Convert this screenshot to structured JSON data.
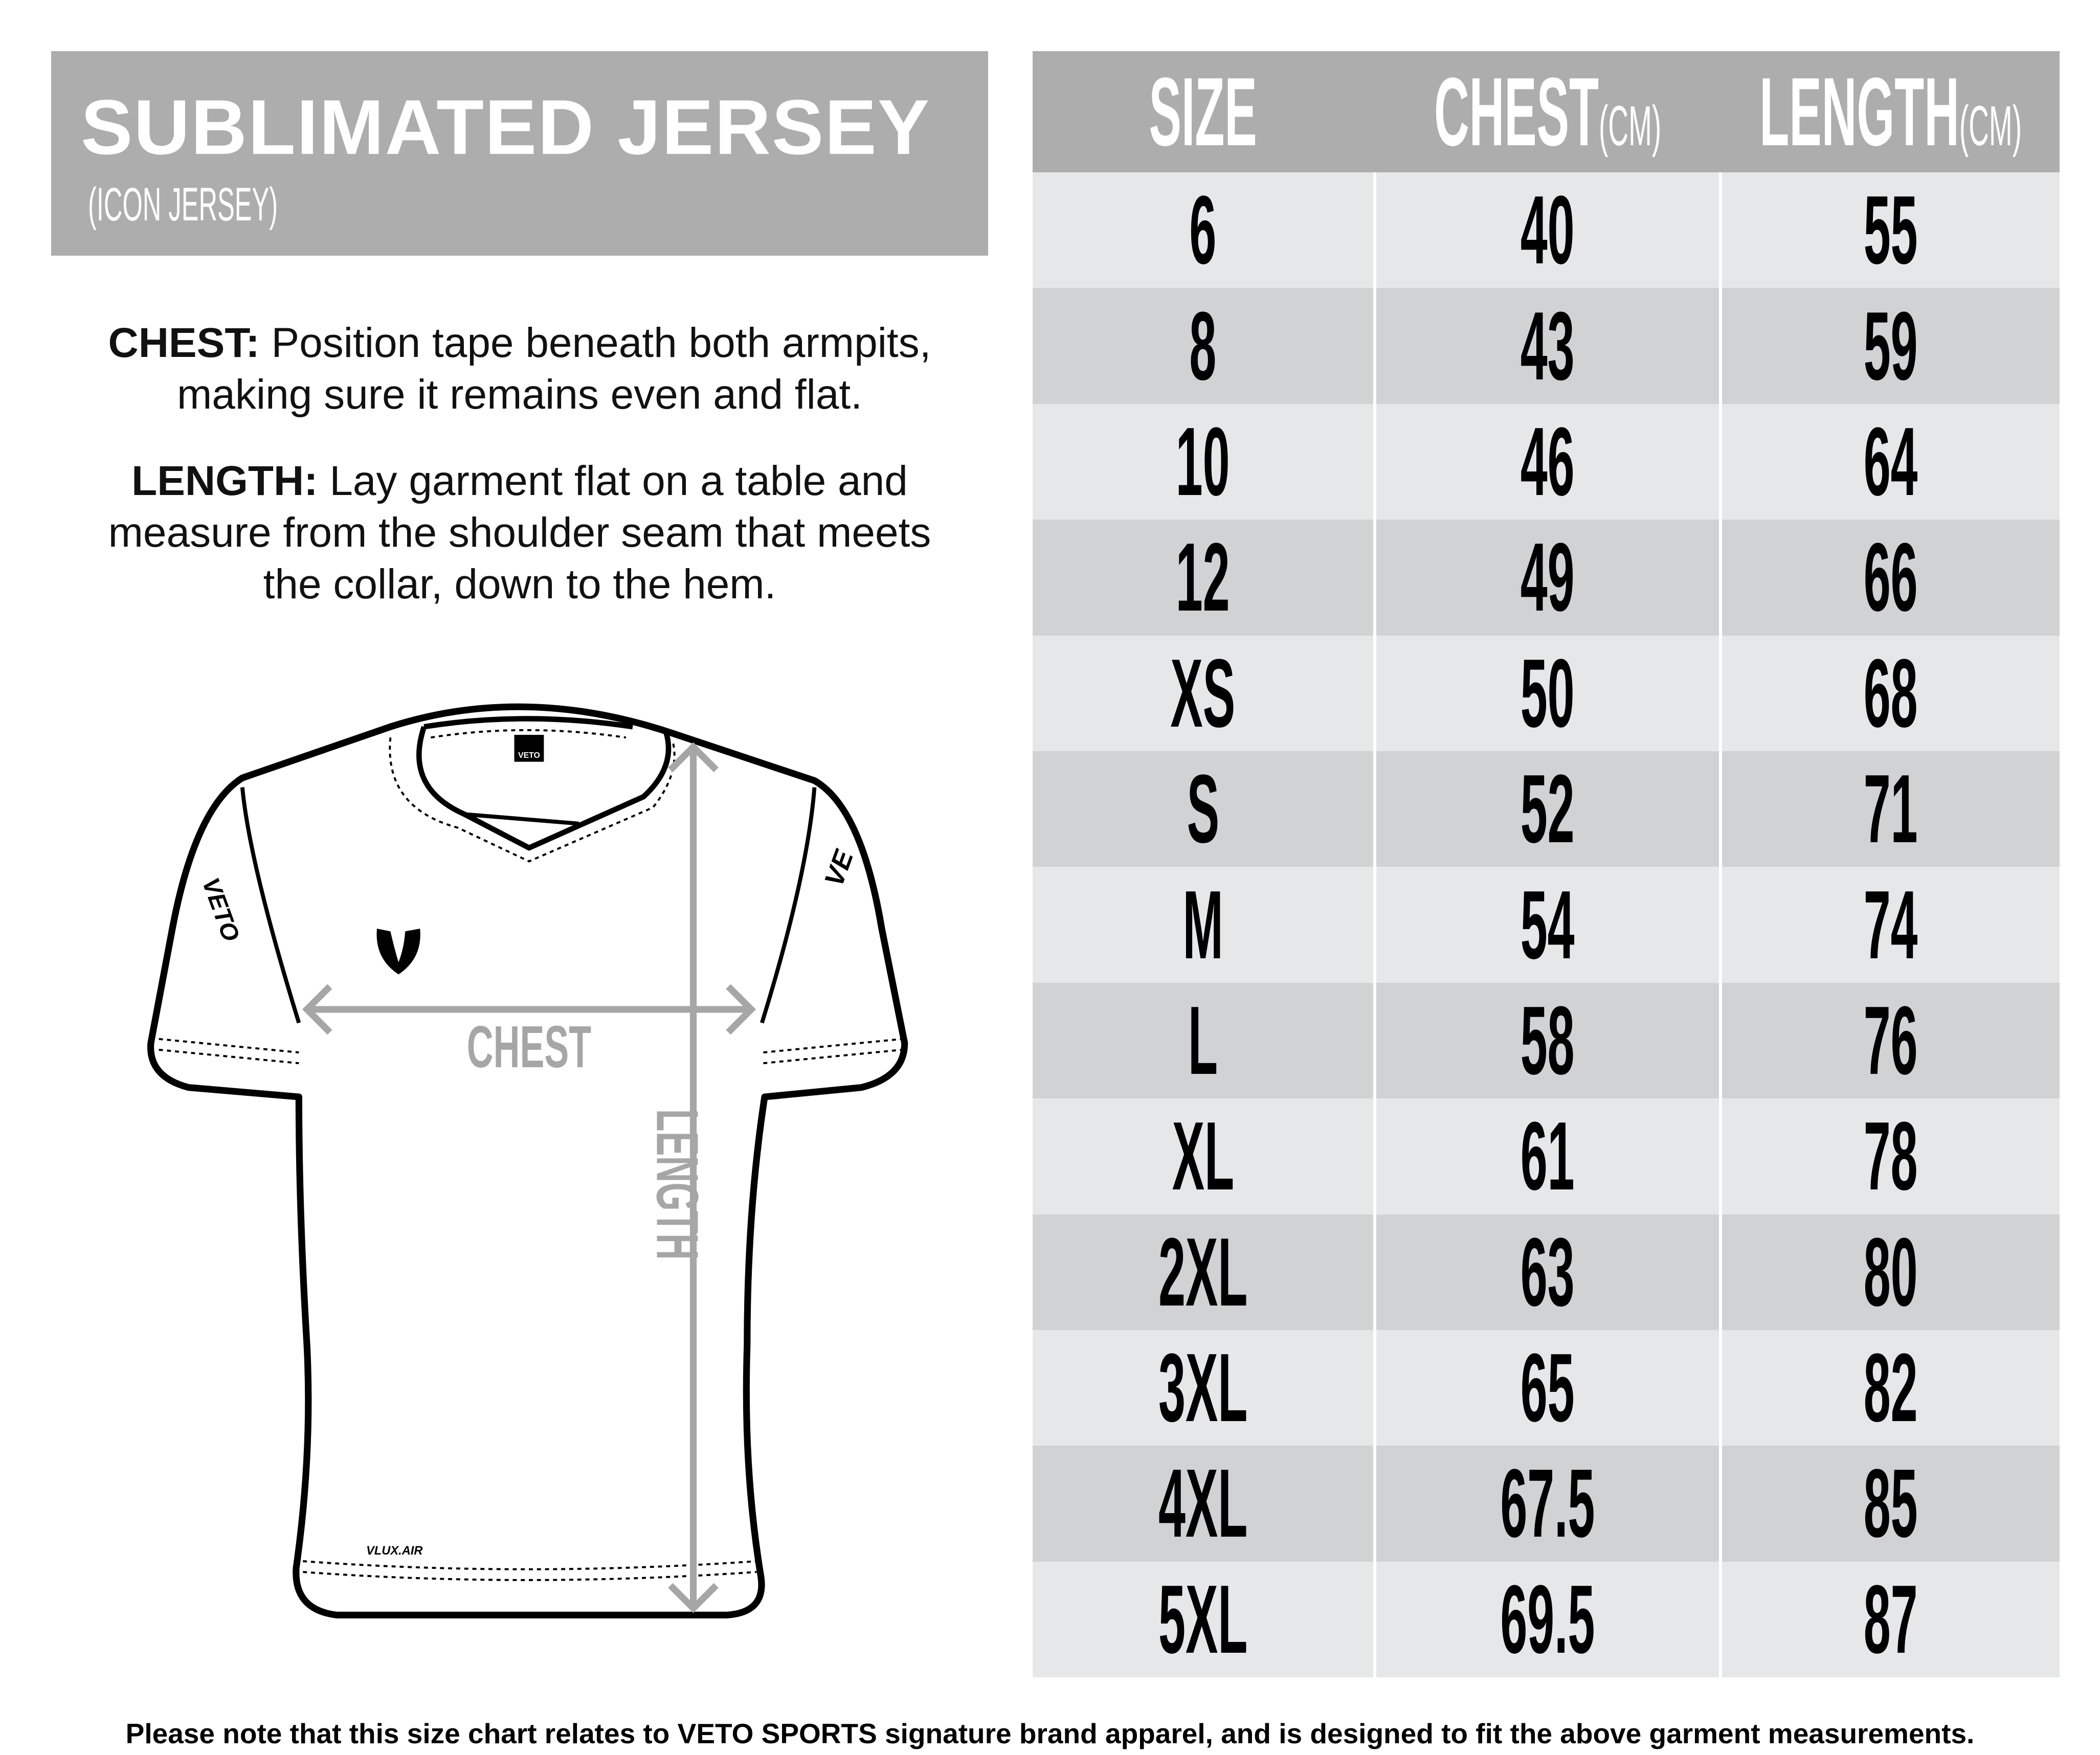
{
  "title": "SUBLIMATED JERSEY",
  "subtitle": "(ICON JERSEY)",
  "instructions": {
    "chest_label": "CHEST:",
    "chest_line1": "Position tape beneath both armpits,",
    "chest_line2": "making sure it remains even and flat.",
    "length_label": "LENGTH:",
    "length_line1": "Lay garment flat on a table and",
    "length_line2": "measure from the shoulder seam that meets",
    "length_line3": "the collar, down to the hem."
  },
  "diagram": {
    "chest_label": "CHEST",
    "length_label": "LENGTH",
    "collar_tag": "VETO",
    "sleeve_print_left": "VETO",
    "sleeve_print_right": "VE",
    "hem_print": "VLUX.AIR"
  },
  "table": {
    "headers": [
      {
        "label": "SIZE",
        "unit": ""
      },
      {
        "label": "CHEST",
        "unit": "(CM)"
      },
      {
        "label": "LENGTH",
        "unit": "(CM)"
      }
    ],
    "rows": [
      [
        "6",
        "40",
        "55"
      ],
      [
        "8",
        "43",
        "59"
      ],
      [
        "10",
        "46",
        "64"
      ],
      [
        "12",
        "49",
        "66"
      ],
      [
        "XS",
        "50",
        "68"
      ],
      [
        "S",
        "52",
        "71"
      ],
      [
        "M",
        "54",
        "74"
      ],
      [
        "L",
        "58",
        "76"
      ],
      [
        "XL",
        "61",
        "78"
      ],
      [
        "2XL",
        "63",
        "80"
      ],
      [
        "3XL",
        "65",
        "82"
      ],
      [
        "4XL",
        "67.5",
        "85"
      ],
      [
        "5XL",
        "69.5",
        "87"
      ]
    ]
  },
  "footer": "Please note that this size chart relates to VETO SPORTS signature brand apparel, and is designed to fit the above garment measurements.",
  "colors": {
    "header_gray": "#adadad",
    "row_light": "#e6e7e9",
    "row_dark": "#d1d2d4",
    "arrow_gray": "#a6a6a6"
  }
}
